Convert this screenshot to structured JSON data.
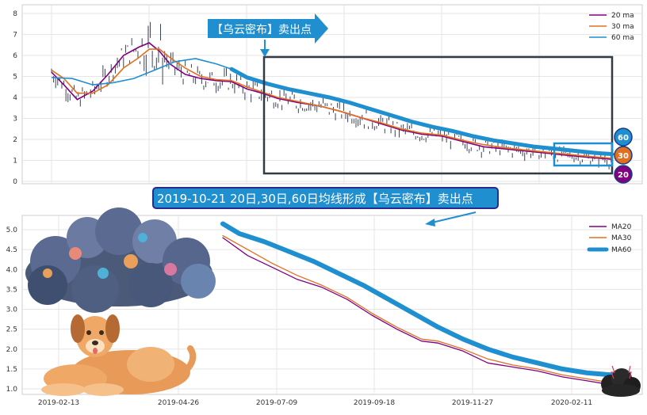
{
  "chart_data": [
    {
      "type": "line",
      "panel": "top",
      "ylim": [
        0,
        8
      ],
      "yticks": [
        "0",
        "1",
        "2",
        "3",
        "4",
        "5",
        "6",
        "7",
        "8"
      ],
      "grid": true,
      "legend_position": "top-right",
      "series": [
        {
          "name": "20 ma",
          "color": "#800080",
          "points": [
            [
              0,
              5.2
            ],
            [
              12,
              4.6
            ],
            [
              25,
              3.9
            ],
            [
              40,
              4.3
            ],
            [
              55,
              5.1
            ],
            [
              70,
              6.0
            ],
            [
              85,
              6.4
            ],
            [
              95,
              6.6
            ],
            [
              105,
              6.2
            ],
            [
              115,
              5.6
            ],
            [
              130,
              5.1
            ],
            [
              145,
              4.9
            ],
            [
              160,
              4.8
            ],
            [
              175,
              4.75
            ],
            [
              190,
              4.4
            ],
            [
              205,
              4.2
            ],
            [
              220,
              3.95
            ],
            [
              240,
              3.75
            ],
            [
              260,
              3.6
            ],
            [
              280,
              3.35
            ],
            [
              300,
              3.05
            ],
            [
              320,
              2.75
            ],
            [
              340,
              2.45
            ],
            [
              360,
              2.25
            ],
            [
              380,
              2.15
            ],
            [
              400,
              1.9
            ],
            [
              420,
              1.65
            ],
            [
              440,
              1.55
            ],
            [
              460,
              1.45
            ],
            [
              480,
              1.35
            ],
            [
              500,
              1.25
            ],
            [
              520,
              1.15
            ],
            [
              545,
              1.05
            ]
          ]
        },
        {
          "name": "30 ma",
          "color": "#e07020",
          "points": [
            [
              0,
              5.3
            ],
            [
              12,
              4.9
            ],
            [
              25,
              4.2
            ],
            [
              40,
              4.2
            ],
            [
              55,
              4.6
            ],
            [
              70,
              5.4
            ],
            [
              85,
              5.9
            ],
            [
              95,
              6.3
            ],
            [
              105,
              6.3
            ],
            [
              115,
              5.9
            ],
            [
              130,
              5.4
            ],
            [
              145,
              5.0
            ],
            [
              160,
              4.85
            ],
            [
              175,
              4.8
            ],
            [
              190,
              4.5
            ],
            [
              205,
              4.25
            ],
            [
              220,
              4.0
            ],
            [
              240,
              3.8
            ],
            [
              260,
              3.6
            ],
            [
              280,
              3.35
            ],
            [
              300,
              3.05
            ],
            [
              320,
              2.8
            ],
            [
              340,
              2.5
            ],
            [
              360,
              2.3
            ],
            [
              380,
              2.2
            ],
            [
              400,
              1.95
            ],
            [
              420,
              1.75
            ],
            [
              440,
              1.6
            ],
            [
              460,
              1.5
            ],
            [
              480,
              1.4
            ],
            [
              500,
              1.3
            ],
            [
              520,
              1.2
            ],
            [
              545,
              1.1
            ]
          ]
        },
        {
          "name": "60 ma",
          "color": "#1f8fd0",
          "points": [
            [
              0,
              4.95
            ],
            [
              20,
              4.9
            ],
            [
              40,
              4.6
            ],
            [
              60,
              4.7
            ],
            [
              80,
              4.9
            ],
            [
              100,
              5.3
            ],
            [
              120,
              5.7
            ],
            [
              140,
              5.85
            ],
            [
              160,
              5.6
            ],
            [
              175,
              5.35
            ],
            [
              190,
              4.95
            ],
            [
              210,
              4.65
            ],
            [
              230,
              4.4
            ],
            [
              250,
              4.2
            ],
            [
              270,
              4.0
            ],
            [
              290,
              3.75
            ],
            [
              310,
              3.45
            ],
            [
              330,
              3.15
            ],
            [
              350,
              2.85
            ],
            [
              370,
              2.6
            ],
            [
              390,
              2.4
            ],
            [
              410,
              2.15
            ],
            [
              430,
              1.95
            ],
            [
              450,
              1.8
            ],
            [
              470,
              1.65
            ],
            [
              490,
              1.55
            ],
            [
              510,
              1.45
            ],
            [
              530,
              1.35
            ],
            [
              545,
              1.3
            ]
          ]
        }
      ]
    },
    {
      "type": "line",
      "panel": "bottom",
      "ylim": [
        0.9,
        5.3
      ],
      "yticks": [
        "1.0",
        "1.5",
        "2.0",
        "2.5",
        "3.0",
        "3.5",
        "4.0",
        "4.5",
        "5.0"
      ],
      "xticks": [
        "2019-02-13",
        "2019-04-26",
        "2019-07-09",
        "2019-09-18",
        "2019-11-27",
        "2020-02-11"
      ],
      "grid": true,
      "legend_position": "top-right",
      "series": [
        {
          "name": "MA20",
          "color": "#800080",
          "points": [
            [
              0,
              4.8
            ],
            [
              30,
              4.35
            ],
            [
              60,
              4.05
            ],
            [
              90,
              3.75
            ],
            [
              120,
              3.55
            ],
            [
              150,
              3.25
            ],
            [
              180,
              2.85
            ],
            [
              210,
              2.5
            ],
            [
              240,
              2.2
            ],
            [
              260,
              2.15
            ],
            [
              290,
              1.95
            ],
            [
              320,
              1.65
            ],
            [
              350,
              1.55
            ],
            [
              380,
              1.45
            ],
            [
              410,
              1.3
            ],
            [
              440,
              1.2
            ],
            [
              470,
              1.1
            ]
          ]
        },
        {
          "name": "MA30",
          "color": "#e07020",
          "points": [
            [
              0,
              4.85
            ],
            [
              30,
              4.5
            ],
            [
              60,
              4.15
            ],
            [
              90,
              3.85
            ],
            [
              120,
              3.6
            ],
            [
              150,
              3.3
            ],
            [
              180,
              2.9
            ],
            [
              210,
              2.55
            ],
            [
              240,
              2.25
            ],
            [
              260,
              2.2
            ],
            [
              290,
              2.0
            ],
            [
              320,
              1.75
            ],
            [
              350,
              1.6
            ],
            [
              380,
              1.5
            ],
            [
              410,
              1.35
            ],
            [
              440,
              1.25
            ],
            [
              470,
              1.15
            ]
          ]
        },
        {
          "name": "MA60",
          "color": "#1f8fd0",
          "points": [
            [
              0,
              5.15
            ],
            [
              20,
              4.9
            ],
            [
              50,
              4.7
            ],
            [
              80,
              4.45
            ],
            [
              110,
              4.2
            ],
            [
              140,
              3.9
            ],
            [
              170,
              3.6
            ],
            [
              200,
              3.25
            ],
            [
              230,
              2.9
            ],
            [
              260,
              2.55
            ],
            [
              290,
              2.25
            ],
            [
              320,
              2.0
            ],
            [
              350,
              1.8
            ],
            [
              380,
              1.65
            ],
            [
              410,
              1.5
            ],
            [
              440,
              1.4
            ],
            [
              470,
              1.35
            ]
          ]
        }
      ]
    }
  ],
  "annotations": {
    "top_callout": "【乌云密布】卖出点",
    "bottom_callout": "2019-10-21 20日,30日,60日均线形成【乌云密布】卖出点",
    "badges": [
      "60",
      "30",
      "20"
    ]
  },
  "colors": {
    "purple": "#800080",
    "orange": "#e07020",
    "blue": "#1f8fd0",
    "box": "#333a44"
  }
}
